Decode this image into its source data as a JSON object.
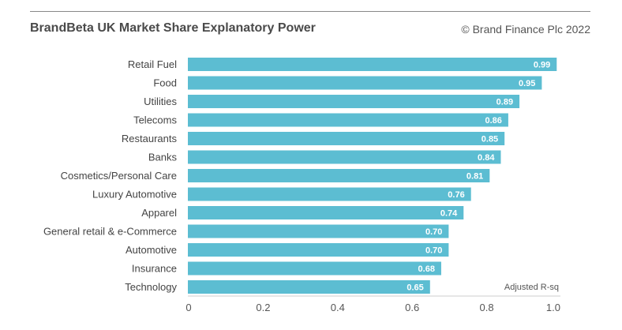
{
  "chart_data": {
    "type": "bar",
    "orientation": "horizontal",
    "title": "BrandBeta UK Market Share Explanatory Power",
    "source": "© Brand Finance Plc 2022",
    "xlabel": "Adjusted R-sq",
    "categories": [
      "Retail Fuel",
      "Food",
      "Utilities",
      "Telecoms",
      "Restaurants",
      "Banks",
      "Cosmetics/Personal Care",
      "Luxury Automotive",
      "Apparel",
      "General retail & e-Commerce",
      "Automotive",
      "Insurance",
      "Technology"
    ],
    "values": [
      0.99,
      0.95,
      0.89,
      0.86,
      0.85,
      0.84,
      0.81,
      0.76,
      0.74,
      0.7,
      0.7,
      0.68,
      0.65
    ],
    "value_labels": [
      "0.99",
      "0.95",
      "0.89",
      "0.86",
      "0.85",
      "0.84",
      "0.81",
      "0.76",
      "0.74",
      "0.70",
      "0.70",
      "0.68",
      "0.65"
    ],
    "xticks": [
      "0",
      "0.2",
      "0.4",
      "0.6",
      "0.8",
      "1.0"
    ],
    "xtick_values": [
      0,
      0.2,
      0.4,
      0.6,
      0.8,
      1.0
    ],
    "xlim": [
      0,
      1.0
    ],
    "grid": false,
    "bar_color": "#5cbdd2"
  }
}
